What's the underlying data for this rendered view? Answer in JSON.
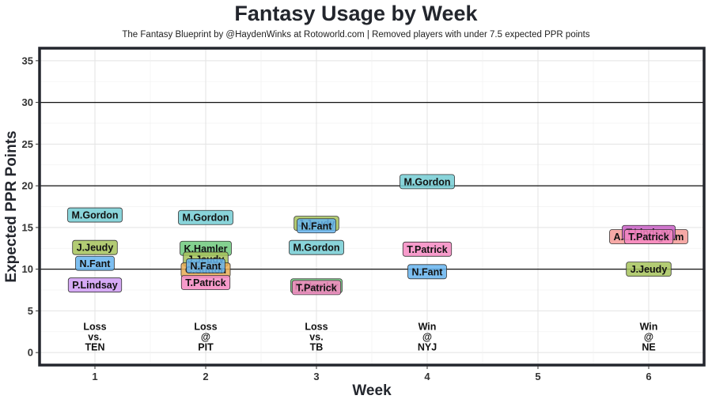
{
  "chart_data": {
    "type": "scatter",
    "title": "Fantasy Usage by Week",
    "subtitle": "The Fantasy Blueprint by @HaydenWinks at Rotoworld.com | Removed players with under 7.5 expected PPR points",
    "xlabel": "Week",
    "ylabel": "Expected PPR Points",
    "xlim": [
      0.5,
      6.5
    ],
    "ylim": [
      -1.5,
      36.5
    ],
    "x_ticks": [
      "1",
      "2",
      "3",
      "4",
      "5",
      "6"
    ],
    "y_ticks": [
      "0",
      "5",
      "10",
      "15",
      "20",
      "25",
      "30",
      "35"
    ],
    "reference_lines": [
      10,
      20,
      30
    ],
    "grid": true,
    "legend": "none",
    "results": [
      {
        "week": 1,
        "lines": [
          "Loss",
          "vs.",
          "TEN"
        ]
      },
      {
        "week": 2,
        "lines": [
          "Loss",
          "@",
          "PIT"
        ]
      },
      {
        "week": 3,
        "lines": [
          "Loss",
          "vs.",
          "TB"
        ]
      },
      {
        "week": 4,
        "lines": [
          "Win",
          "@",
          "NYJ"
        ]
      },
      {
        "week": 6,
        "lines": [
          "Win",
          "@",
          "NE"
        ]
      }
    ],
    "colors": {
      "M.Gordon": "#74cdd3",
      "J.Jeudy": "#a6c35c",
      "N.Fant": "#66b4ee",
      "P.Lindsay": "#cf9bf3",
      "K.Hamler": "#6ec97d",
      "C.Sutton": "#e7ad55",
      "T.Patrick": "#f68ac2",
      "A.Cunningham": "#f59a96",
      "T.Lindsay": "#c95fc6"
    },
    "points": [
      {
        "week": 1,
        "player": "M.Gordon",
        "value": 16.5
      },
      {
        "week": 1,
        "player": "J.Jeudy",
        "value": 12.6
      },
      {
        "week": 1,
        "player": "N.Fant",
        "value": 10.7
      },
      {
        "week": 1,
        "player": "P.Lindsay",
        "value": 8.1
      },
      {
        "week": 2,
        "player": "M.Gordon",
        "value": 16.2
      },
      {
        "week": 2,
        "player": "K.Hamler",
        "value": 12.5
      },
      {
        "week": 2,
        "player": "J.Jeudy",
        "value": 11.2
      },
      {
        "week": 2,
        "player": "C.Sutton",
        "value": 9.9
      },
      {
        "week": 2,
        "player": "N.Fant",
        "value": 10.4
      },
      {
        "week": 2,
        "player": "T.Patrick",
        "value": 8.4
      },
      {
        "week": 3,
        "player": "J.Jeudy",
        "value": 15.5
      },
      {
        "week": 3,
        "player": "N.Fant",
        "value": 15.2
      },
      {
        "week": 3,
        "player": "M.Gordon",
        "value": 12.6
      },
      {
        "week": 3,
        "player": "K.Hamler",
        "value": 8.0
      },
      {
        "week": 3,
        "player": "T.Patrick",
        "value": 7.8
      },
      {
        "week": 4,
        "player": "M.Gordon",
        "value": 20.5
      },
      {
        "week": 4,
        "player": "T.Patrick",
        "value": 12.4
      },
      {
        "week": 4,
        "player": "N.Fant",
        "value": 9.7
      },
      {
        "week": 6,
        "player": "A.Cunningham",
        "value": 13.9
      },
      {
        "week": 6,
        "player": "T.Lindsay",
        "value": 14.4
      },
      {
        "week": 6,
        "player": "T.Patrick",
        "value": 13.9
      },
      {
        "week": 6,
        "player": "J.Jeudy",
        "value": 10.0
      }
    ]
  }
}
